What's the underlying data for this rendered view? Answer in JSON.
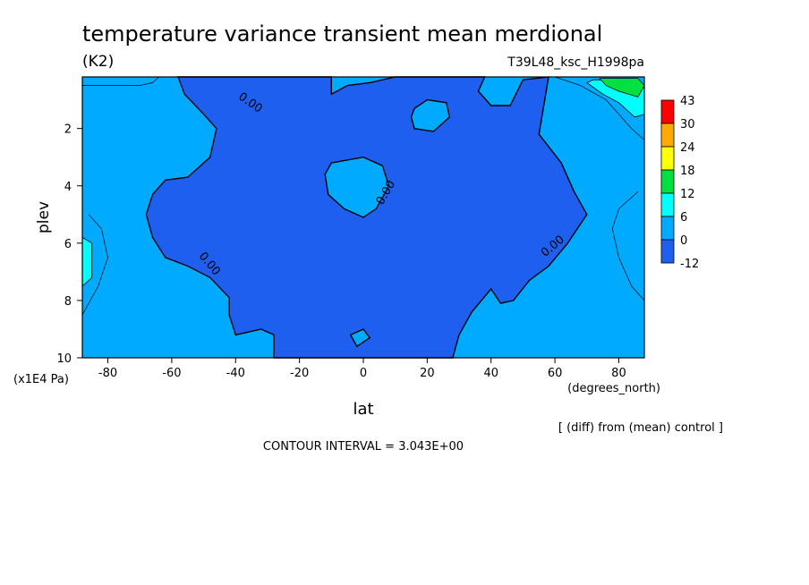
{
  "colors": {
    "level_minus12": "#1e5ff0",
    "level_0": "#00aaff",
    "level_6": "#00ffff",
    "level_12": "#00e040",
    "level_18": "#ffff00",
    "level_24": "#ffaa00",
    "level_30": "#ff0000",
    "contour_line": "#000000"
  },
  "chart_data": {
    "type": "heatmap",
    "title": "temperature variance transient mean merdional",
    "units": "(K2)",
    "run_label": "T39L48_ksc_H1998pa",
    "xlabel": "lat",
    "x_units": "(degrees_north)",
    "ylabel": "plev",
    "y_units": "(x1E4 Pa)",
    "xlim": [
      -88,
      88
    ],
    "ylim": [
      10,
      0.2
    ],
    "x_ticks": [
      "-80",
      "-60",
      "-40",
      "-20",
      "0",
      "20",
      "40",
      "60",
      "80"
    ],
    "y_ticks": [
      "2",
      "4",
      "6",
      "8",
      "10"
    ],
    "colorbar": {
      "labels": [
        "43",
        "30",
        "24",
        "18",
        "12",
        "6",
        "0",
        "-12"
      ],
      "levels": [
        -12,
        0,
        6,
        12,
        18,
        24,
        30,
        43
      ]
    },
    "contour_labels": [
      "0.00",
      "0.00",
      "0.00",
      "0.00"
    ],
    "contour_interval_text": "CONTOUR INTERVAL = 3.043E+00",
    "note": "[ (diff) from (mean) control ]",
    "regions": {
      "negative_main": [
        [
          -58,
          0.2
        ],
        [
          -10,
          0.2
        ],
        [
          -10,
          0.8
        ],
        [
          -5,
          0.5
        ],
        [
          2,
          0.4
        ],
        [
          10,
          0.2
        ],
        [
          38,
          0.2
        ],
        [
          36,
          0.7
        ],
        [
          40,
          1.2
        ],
        [
          46,
          1.2
        ],
        [
          50,
          0.3
        ],
        [
          58,
          0.2
        ],
        [
          55,
          2.2
        ],
        [
          62,
          3.2
        ],
        [
          66,
          4.2
        ],
        [
          70,
          5.0
        ],
        [
          64,
          6.0
        ],
        [
          58,
          6.8
        ],
        [
          52,
          7.3
        ],
        [
          47,
          8.0
        ],
        [
          43,
          8.1
        ],
        [
          40,
          7.6
        ],
        [
          34,
          8.4
        ],
        [
          30,
          9.2
        ],
        [
          28,
          10
        ],
        [
          -28,
          10
        ],
        [
          -28,
          9.2
        ],
        [
          -32,
          9.0
        ],
        [
          -40,
          9.2
        ],
        [
          -42,
          8.5
        ],
        [
          -42,
          7.9
        ],
        [
          -48,
          7.2
        ],
        [
          -55,
          6.8
        ],
        [
          -62,
          6.5
        ],
        [
          -66,
          5.8
        ],
        [
          -68,
          5.0
        ],
        [
          -66,
          4.3
        ],
        [
          -62,
          3.8
        ],
        [
          -55,
          3.7
        ],
        [
          -48,
          3.0
        ],
        [
          -46,
          2.0
        ],
        [
          -50,
          1.5
        ],
        [
          -56,
          0.8
        ]
      ],
      "positive_islands": [
        [
          [
            -10,
            3.2
          ],
          [
            0,
            3.0
          ],
          [
            6,
            3.3
          ],
          [
            8,
            4.0
          ],
          [
            4,
            4.8
          ],
          [
            0,
            5.1
          ],
          [
            -6,
            4.8
          ],
          [
            -11,
            4.3
          ],
          [
            -12,
            3.6
          ]
        ],
        [
          [
            16,
            1.3
          ],
          [
            20,
            1.0
          ],
          [
            26,
            1.1
          ],
          [
            27,
            1.6
          ],
          [
            22,
            2.1
          ],
          [
            16,
            2.0
          ],
          [
            15,
            1.6
          ]
        ],
        [
          [
            -4,
            9.2
          ],
          [
            0,
            9.0
          ],
          [
            2,
            9.3
          ],
          [
            -2,
            9.6
          ]
        ]
      ],
      "level6_patches": [
        [
          [
            72,
            0.3
          ],
          [
            86,
            0.3
          ],
          [
            88,
            0.6
          ],
          [
            88,
            1.5
          ],
          [
            85,
            1.6
          ],
          [
            80,
            1.1
          ],
          [
            75,
            0.8
          ],
          [
            70,
            0.4
          ]
        ],
        [
          [
            -88,
            5.8
          ],
          [
            -85,
            6.0
          ],
          [
            -85,
            7.2
          ],
          [
            -88,
            7.5
          ]
        ]
      ],
      "strong_patch": [
        [
          74,
          0.25
        ],
        [
          86,
          0.25
        ],
        [
          88,
          0.5
        ],
        [
          86,
          0.9
        ],
        [
          80,
          0.7
        ],
        [
          76,
          0.5
        ]
      ],
      "thin_contours": [
        [
          [
            -88,
            8.5
          ],
          [
            -83,
            7.5
          ],
          [
            -80,
            6.5
          ],
          [
            -82,
            5.5
          ],
          [
            -86,
            5.0
          ]
        ],
        [
          [
            88,
            8.0
          ],
          [
            84,
            7.5
          ],
          [
            80,
            6.5
          ],
          [
            78,
            5.5
          ],
          [
            80,
            4.8
          ],
          [
            86,
            4.2
          ]
        ],
        [
          [
            -88,
            0.5
          ],
          [
            -70,
            0.5
          ],
          [
            -66,
            0.4
          ],
          [
            -64,
            0.2
          ]
        ],
        [
          [
            60,
            0.2
          ],
          [
            68,
            0.5
          ],
          [
            76,
            1.0
          ],
          [
            84,
            2.0
          ],
          [
            88,
            2.4
          ]
        ]
      ]
    }
  }
}
